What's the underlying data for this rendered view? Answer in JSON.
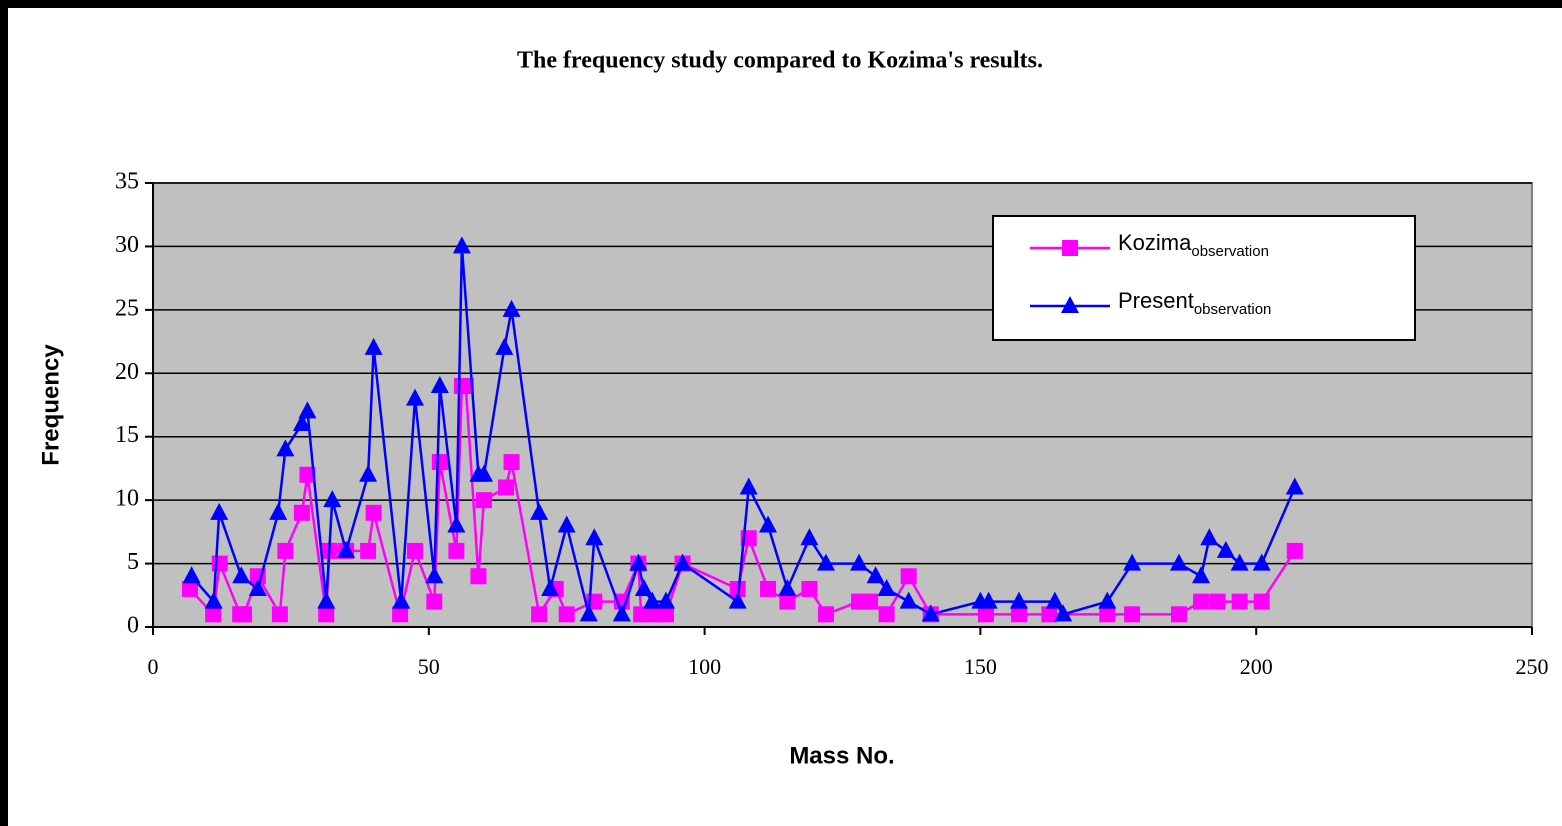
{
  "chart_data": {
    "type": "line",
    "title": "The frequency study compared to Kozima's results.",
    "x_label": "Mass No.",
    "y_label": "Frequency",
    "xlim": [
      0,
      250
    ],
    "xticks": [
      0,
      50,
      100,
      150,
      200,
      250
    ],
    "ylim": [
      0,
      35
    ],
    "yticks": [
      0,
      5,
      10,
      15,
      20,
      25,
      30,
      35
    ],
    "grid": true,
    "legend": "upper right",
    "series": [
      {
        "name": "Kozima",
        "subscript": "observation",
        "color": "#ff00ff",
        "marker": "square",
        "x": [
          6.7,
          10.9,
          12.1,
          15.8,
          16.5,
          19,
          23,
          24,
          27,
          28,
          31.4,
          32,
          35,
          39,
          40,
          44.8,
          47.5,
          51,
          52,
          55,
          56,
          56.7,
          59,
          60,
          64,
          65,
          70,
          73,
          75,
          80,
          85,
          88,
          88.5,
          91,
          93,
          96,
          106,
          108,
          111.5,
          115,
          119,
          122,
          128,
          130,
          133,
          137,
          141,
          151,
          157,
          162.5,
          173,
          177.5,
          186,
          190,
          193,
          197,
          201,
          207
        ],
        "values": [
          3,
          1,
          5,
          1,
          1,
          4,
          1,
          6,
          9,
          12,
          1,
          6,
          6,
          6,
          9,
          1,
          6,
          2,
          13,
          6,
          19,
          19,
          4,
          10,
          11,
          13,
          1,
          3,
          1,
          2,
          2,
          5,
          1,
          1,
          1,
          5,
          3,
          7,
          3,
          2,
          3,
          1,
          2,
          2,
          1,
          4,
          1,
          1,
          1,
          1,
          1,
          1,
          1,
          2,
          2,
          2,
          2,
          6
        ]
      },
      {
        "name": "Present",
        "subscript": "observation",
        "color": "#0000ff",
        "marker": "triangle",
        "x": [
          7,
          11,
          12,
          16,
          19,
          22.7,
          24,
          27,
          28,
          31.4,
          32.5,
          35,
          39,
          40,
          45,
          47.5,
          51,
          52,
          55,
          56,
          59,
          60,
          63.7,
          65,
          70,
          72,
          75,
          79,
          80,
          85,
          88,
          89,
          90.5,
          93,
          96,
          106,
          108,
          111.5,
          115,
          119,
          122,
          128,
          131,
          133,
          137,
          141,
          150,
          151.5,
          157,
          163.5,
          165,
          173,
          177.5,
          186,
          190,
          191.5,
          194.5,
          197,
          201,
          207
        ],
        "values": [
          4,
          2,
          9,
          4,
          3,
          9,
          14,
          16,
          17,
          2,
          10,
          6,
          12,
          22,
          2,
          18,
          4,
          19,
          8,
          30,
          12,
          12,
          22,
          25,
          9,
          3,
          8,
          1,
          7,
          1,
          5,
          3,
          2,
          2,
          5,
          2,
          11,
          8,
          3,
          7,
          5,
          5,
          4,
          3,
          2,
          1,
          2,
          2,
          2,
          2,
          1,
          2,
          5,
          5,
          4,
          7,
          6,
          5,
          5,
          11
        ]
      }
    ]
  }
}
